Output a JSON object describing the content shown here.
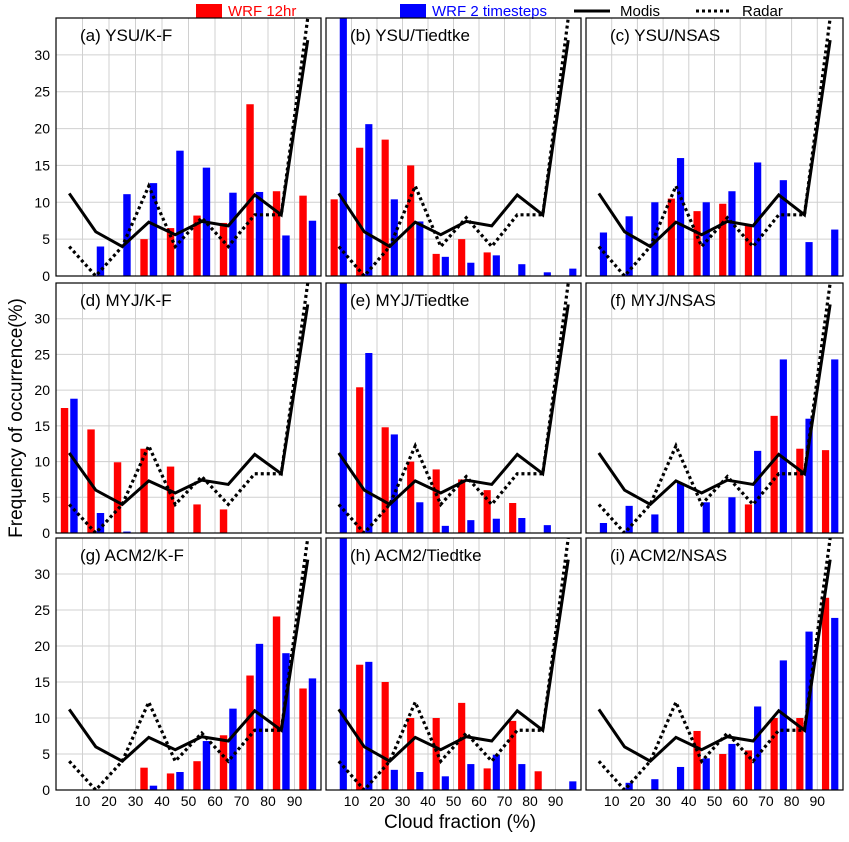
{
  "figure": {
    "ylabel": "Frequency of occurrence(%)",
    "xlabel": "Cloud fraction (%)",
    "x_ticks": [
      "10",
      "20",
      "30",
      "40",
      "50",
      "60",
      "70",
      "80",
      "90"
    ],
    "y_ticks": [
      "0",
      "5",
      "10",
      "15",
      "20",
      "25",
      "30"
    ]
  },
  "legend": [
    {
      "label": "WRF 12hr",
      "kind": "bar",
      "color": "#ff0000"
    },
    {
      "label": "WRF 2 timesteps",
      "kind": "bar",
      "color": "#0000ff"
    },
    {
      "label": "Modis",
      "kind": "solid-line",
      "color": "#000000"
    },
    {
      "label": "Radar",
      "kind": "dotted-line",
      "color": "#000000"
    }
  ],
  "colors": {
    "wrf12": "#ff0000",
    "wrf2": "#0000ff",
    "line": "#000000",
    "grid": "#d0d0d0"
  },
  "chart_data": {
    "type": "bar",
    "x_bins": [
      5,
      15,
      25,
      35,
      45,
      55,
      65,
      75,
      85,
      95
    ],
    "ylim": [
      0,
      35
    ],
    "xlabel": "Cloud fraction (%)",
    "ylabel": "Frequency of occurrence(%)",
    "grid": true,
    "legend_position": "top",
    "modis": [
      11.2,
      6.0,
      4.0,
      7.3,
      5.6,
      7.4,
      6.8,
      11.0,
      8.3,
      32.0
    ],
    "radar": [
      4.0,
      0.0,
      4.0,
      12.2,
      4.0,
      7.9,
      4.0,
      8.3,
      8.3,
      36.0
    ],
    "panels": [
      {
        "title": "(a) YSU/K-F",
        "wrf12": [
          0,
          0,
          0,
          5.0,
          6.5,
          8.2,
          7.2,
          23.3,
          11.5,
          10.9
        ],
        "wrf2": [
          0,
          4.0,
          11.1,
          12.6,
          17.0,
          14.7,
          11.3,
          11.4,
          5.5,
          7.5
        ]
      },
      {
        "title": "(b) YSU/Tiedtke",
        "wrf12": [
          10.4,
          17.4,
          18.5,
          15.0,
          3.0,
          5.0,
          3.2,
          0,
          0,
          0
        ],
        "wrf2": [
          35.0,
          20.6,
          10.4,
          7.4,
          2.6,
          1.8,
          2.8,
          1.6,
          0.5,
          1.0
        ]
      },
      {
        "title": "(c) YSU/NSAS",
        "wrf12": [
          0,
          0,
          0,
          10.5,
          8.8,
          9.8,
          7.0,
          0,
          0,
          0
        ],
        "wrf2": [
          5.9,
          8.1,
          10.0,
          16.0,
          10.0,
          11.5,
          15.4,
          13.0,
          4.6,
          6.3
        ]
      },
      {
        "title": "(d) MYJ/K-F",
        "wrf12": [
          17.5,
          14.5,
          9.9,
          11.8,
          9.3,
          4.0,
          3.3,
          0,
          0,
          0
        ],
        "wrf2": [
          18.8,
          2.8,
          0.2,
          0,
          0,
          0,
          0,
          0,
          0,
          0
        ]
      },
      {
        "title": "(e) MYJ/Tiedtke",
        "wrf12": [
          0,
          20.4,
          14.8,
          10.0,
          8.9,
          7.5,
          6.0,
          4.2,
          0,
          0
        ],
        "wrf2": [
          35.0,
          25.2,
          13.8,
          4.3,
          1.0,
          1.8,
          2.0,
          2.1,
          1.1,
          0
        ]
      },
      {
        "title": "(f) MYJ/NSAS",
        "wrf12": [
          0,
          0,
          0,
          0,
          0,
          0,
          4.0,
          16.4,
          11.8,
          11.6
        ],
        "wrf2": [
          1.4,
          3.8,
          2.6,
          7.0,
          4.3,
          5.0,
          11.5,
          24.3,
          16.0,
          24.3
        ]
      },
      {
        "title": "(g) ACM2/K-F",
        "wrf12": [
          0,
          0,
          0,
          3.1,
          2.3,
          4.0,
          7.6,
          15.9,
          24.1,
          14.1
        ],
        "wrf2": [
          0,
          0,
          0,
          0.6,
          2.5,
          6.8,
          11.3,
          20.3,
          19.0,
          15.5
        ]
      },
      {
        "title": "(h) ACM2/Tiedtke",
        "wrf12": [
          0,
          17.4,
          15.0,
          10.0,
          10.0,
          12.1,
          3.0,
          9.6,
          2.6,
          0
        ],
        "wrf2": [
          35.0,
          17.8,
          2.8,
          2.5,
          1.9,
          3.6,
          4.9,
          3.6,
          0,
          1.2
        ]
      },
      {
        "title": "(i) ACM2/NSAS",
        "wrf12": [
          0,
          0,
          0,
          0,
          8.2,
          5.0,
          5.5,
          10.0,
          10.0,
          26.7
        ],
        "wrf2": [
          0,
          1.0,
          1.5,
          3.2,
          4.4,
          6.4,
          11.6,
          18.0,
          22.0,
          23.9
        ]
      }
    ]
  }
}
